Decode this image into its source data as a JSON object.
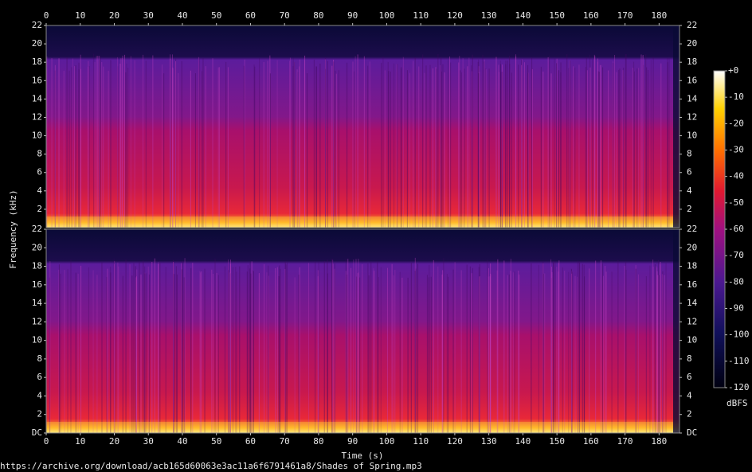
{
  "chart_data": {
    "type": "spectrogram",
    "xlabel": "Time (s)",
    "ylabel": "Frequency (kHz)",
    "xlim": [
      0,
      186
    ],
    "xticks": [
      0,
      10,
      20,
      30,
      40,
      50,
      60,
      70,
      80,
      90,
      100,
      110,
      120,
      130,
      140,
      150,
      160,
      170,
      180
    ],
    "panels": [
      {
        "ylim": [
          0,
          22
        ],
        "yticks": [
          2,
          4,
          6,
          8,
          10,
          12,
          14,
          16,
          18,
          20,
          22
        ]
      },
      {
        "ylim": [
          0,
          22
        ],
        "yticks": [
          {
            "value": 0,
            "label": "DC"
          },
          2,
          4,
          6,
          8,
          10,
          12,
          14,
          16,
          18,
          20,
          22
        ]
      }
    ],
    "colorbar": {
      "label": "dBFS",
      "lim": [
        -120,
        0
      ],
      "ticks": [
        {
          "value": 0,
          "label": "+0"
        },
        -10,
        -20,
        -30,
        -40,
        -50,
        -60,
        -70,
        -80,
        -90,
        -100,
        -110,
        -120
      ]
    },
    "source": "https://archive.org/download/acb165d60063e3ac11a6f6791461a8/Shades of Spring.mp3"
  }
}
